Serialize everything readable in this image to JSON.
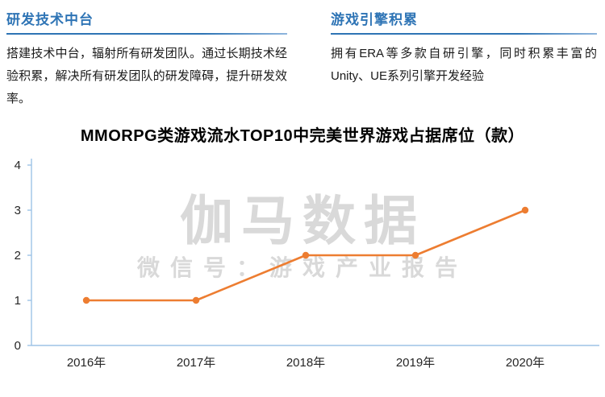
{
  "sections": [
    {
      "title": "研发技术中台",
      "body": "搭建技术中台，辐射所有研发团队。通过长期技术经验积累，解决所有研发团队的研发障碍，提升研发效率。"
    },
    {
      "title": "游戏引擎积累",
      "body": "拥有ERA等多款自研引擎，同时积累丰富的Unity、UE系列引擎开发经验"
    }
  ],
  "chart_data": {
    "type": "line",
    "title": "MMORPG类游戏流水TOP10中完美世界游戏占据席位（款）",
    "categories": [
      "2016年",
      "2017年",
      "2018年",
      "2019年",
      "2020年"
    ],
    "series": [
      {
        "name": "完美世界游戏占据席位（款）",
        "values": [
          1,
          1,
          2,
          2,
          3
        ]
      }
    ],
    "ylim": [
      0,
      4
    ],
    "yticks": [
      0,
      1,
      2,
      3,
      4
    ],
    "xlabel": "",
    "ylabel": "",
    "legend": "none",
    "grid": false,
    "line_color": "#ed7d31",
    "axis_color": "#9dc3e6",
    "tick_label_color": "#262626"
  },
  "watermark": {
    "title": "伽马数据",
    "subtitle": "微信号：游戏产业报告"
  },
  "colors": {
    "heading": "#2e74b5",
    "body_text": "#1a1a1a",
    "watermark": "#d9d9d9",
    "background": "#ffffff"
  }
}
